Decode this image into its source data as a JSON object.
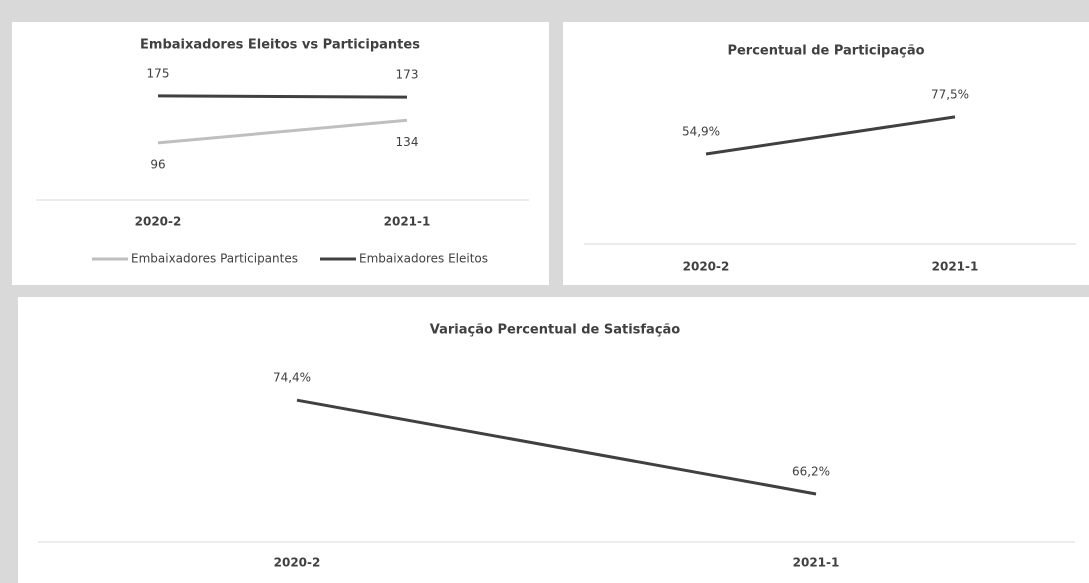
{
  "chart_data": [
    {
      "type": "line",
      "title": "Embaixadores Eleitos vs Participantes",
      "categories": [
        "2020-2",
        "2021-1"
      ],
      "series": [
        {
          "name": "Embaixadores Participantes",
          "color": "#bfbfbf",
          "values": [
            96,
            134
          ]
        },
        {
          "name": "Embaixadores Eleitos",
          "color": "#404040",
          "values": [
            175,
            173
          ]
        }
      ],
      "ylim": [
        0,
        200
      ],
      "legend": "bottom"
    },
    {
      "type": "line",
      "title": "Percentual de Participação",
      "categories": [
        "2020-2",
        "2021-1"
      ],
      "values": [
        54.9,
        77.5
      ],
      "value_labels": [
        "54,9%",
        "77,5%"
      ],
      "color": "#404040",
      "ylim": [
        0,
        100
      ]
    },
    {
      "type": "line",
      "title": "Variação Percentual de Satisfação",
      "categories": [
        "2020-2",
        "2021-1"
      ],
      "values": [
        74.4,
        66.2
      ],
      "value_labels": [
        "74,4%",
        "66,2%"
      ],
      "color": "#404040",
      "ylim": [
        62,
        78
      ]
    }
  ]
}
